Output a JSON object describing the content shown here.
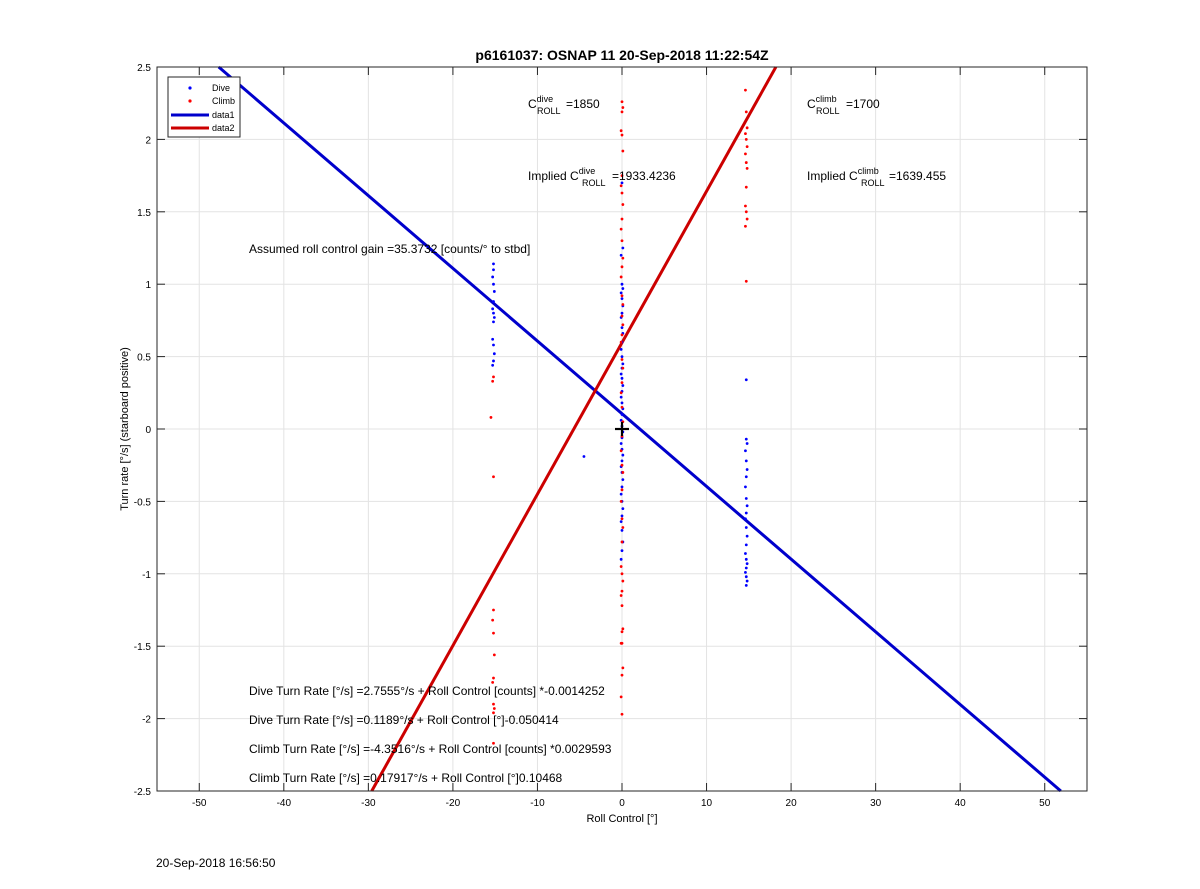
{
  "chart_data": {
    "type": "scatter",
    "title": "p6161037: OSNAP 11 20-Sep-2018 11:22:54Z",
    "xlabel": "Roll Control [°]",
    "ylabel": "Turn rate [°/s] (starboard positive)",
    "xlim": [
      -55,
      55
    ],
    "ylim": [
      -2.5,
      2.5
    ],
    "xticks": [
      -50,
      -40,
      -30,
      -20,
      -10,
      0,
      10,
      20,
      30,
      40,
      50
    ],
    "yticks": [
      -2.5,
      -2,
      -1.5,
      -1,
      -0.5,
      0,
      0.5,
      1,
      1.5,
      2,
      2.5
    ],
    "grid": true,
    "legend_position": "top-left",
    "legend": [
      {
        "label": "Dive",
        "kind": "marker",
        "color": "#0000ff"
      },
      {
        "label": "Climb",
        "kind": "marker",
        "color": "#ff0000"
      },
      {
        "label": "data1",
        "kind": "line",
        "color": "#0000cc"
      },
      {
        "label": "data2",
        "kind": "line",
        "color": "#cc0000"
      }
    ],
    "lines": [
      {
        "name": "data1",
        "color": "#0000cc",
        "points": [
          [
            -47.7,
            2.5
          ],
          [
            51.9,
            -2.5
          ]
        ]
      },
      {
        "name": "data2",
        "color": "#cc0000",
        "points": [
          [
            -29.6,
            -2.5
          ],
          [
            18.2,
            2.5
          ]
        ]
      }
    ],
    "series": [
      {
        "name": "Dive",
        "color": "#0000ff",
        "points": [
          [
            -15.2,
            1.14
          ],
          [
            -15.2,
            1.1
          ],
          [
            -15.3,
            1.05
          ],
          [
            -15.2,
            1.0
          ],
          [
            -15.1,
            0.95
          ],
          [
            -15.2,
            0.88
          ],
          [
            -15.3,
            0.83
          ],
          [
            -15.2,
            0.8
          ],
          [
            -15.1,
            0.77
          ],
          [
            -15.2,
            0.74
          ],
          [
            -15.3,
            0.62
          ],
          [
            -15.2,
            0.58
          ],
          [
            -15.1,
            0.52
          ],
          [
            -15.2,
            0.47
          ],
          [
            -15.3,
            0.44
          ],
          [
            -4.5,
            -0.19
          ],
          [
            0.0,
            1.7
          ],
          [
            0.1,
            1.25
          ],
          [
            -0.1,
            1.2
          ],
          [
            0.0,
            1.0
          ],
          [
            0.1,
            0.97
          ],
          [
            -0.1,
            0.94
          ],
          [
            0.0,
            0.9
          ],
          [
            0.1,
            0.85
          ],
          [
            0.0,
            0.8
          ],
          [
            -0.1,
            0.77
          ],
          [
            0.0,
            0.7
          ],
          [
            0.1,
            0.66
          ],
          [
            0.0,
            0.6
          ],
          [
            -0.1,
            0.55
          ],
          [
            0.0,
            0.5
          ],
          [
            0.1,
            0.45
          ],
          [
            0.0,
            0.42
          ],
          [
            -0.1,
            0.38
          ],
          [
            0.0,
            0.35
          ],
          [
            0.1,
            0.3
          ],
          [
            0.0,
            0.26
          ],
          [
            -0.1,
            0.22
          ],
          [
            0.0,
            0.18
          ],
          [
            0.1,
            0.14
          ],
          [
            0.0,
            0.1
          ],
          [
            -0.1,
            0.06
          ],
          [
            0.0,
            0.02
          ],
          [
            0.1,
            -0.02
          ],
          [
            0.0,
            -0.06
          ],
          [
            -0.1,
            -0.1
          ],
          [
            0.0,
            -0.14
          ],
          [
            0.1,
            -0.18
          ],
          [
            0.0,
            -0.22
          ],
          [
            -0.1,
            -0.26
          ],
          [
            0.0,
            -0.3
          ],
          [
            0.1,
            -0.35
          ],
          [
            0.0,
            -0.4
          ],
          [
            -0.1,
            -0.45
          ],
          [
            0.0,
            -0.5
          ],
          [
            0.1,
            -0.55
          ],
          [
            0.0,
            -0.6
          ],
          [
            -0.1,
            -0.64
          ],
          [
            0.0,
            -0.7
          ],
          [
            0.1,
            -0.78
          ],
          [
            0.0,
            -0.84
          ],
          [
            -0.1,
            -0.9
          ],
          [
            14.7,
            0.34
          ],
          [
            14.7,
            -0.07
          ],
          [
            14.8,
            -0.1
          ],
          [
            14.6,
            -0.15
          ],
          [
            14.7,
            -0.22
          ],
          [
            14.8,
            -0.28
          ],
          [
            14.7,
            -0.33
          ],
          [
            14.6,
            -0.4
          ],
          [
            14.7,
            -0.48
          ],
          [
            14.8,
            -0.53
          ],
          [
            14.7,
            -0.58
          ],
          [
            14.6,
            -0.62
          ],
          [
            14.7,
            -0.68
          ],
          [
            14.8,
            -0.74
          ],
          [
            14.7,
            -0.8
          ],
          [
            14.6,
            -0.86
          ],
          [
            14.7,
            -0.9
          ],
          [
            14.8,
            -0.93
          ],
          [
            14.7,
            -0.96
          ],
          [
            14.6,
            -0.99
          ],
          [
            14.7,
            -1.02
          ],
          [
            14.8,
            -1.05
          ],
          [
            14.7,
            -1.08
          ]
        ]
      },
      {
        "name": "Climb",
        "color": "#ff0000",
        "points": [
          [
            -15.2,
            0.36
          ],
          [
            -15.3,
            0.33
          ],
          [
            -15.5,
            0.08
          ],
          [
            -15.2,
            -0.33
          ],
          [
            -15.2,
            -1.25
          ],
          [
            -15.3,
            -1.32
          ],
          [
            -15.2,
            -1.41
          ],
          [
            -15.1,
            -1.56
          ],
          [
            -15.2,
            -1.72
          ],
          [
            -15.3,
            -1.75
          ],
          [
            -15.2,
            -1.9
          ],
          [
            -15.1,
            -1.93
          ],
          [
            -15.2,
            -1.96
          ],
          [
            -15.2,
            -2.17
          ],
          [
            0.0,
            2.26
          ],
          [
            0.1,
            2.22
          ],
          [
            0.0,
            2.19
          ],
          [
            -0.1,
            2.06
          ],
          [
            0.0,
            2.03
          ],
          [
            0.1,
            1.92
          ],
          [
            0.0,
            1.75
          ],
          [
            -0.1,
            1.68
          ],
          [
            0.0,
            1.63
          ],
          [
            0.1,
            1.55
          ],
          [
            0.0,
            1.45
          ],
          [
            -0.1,
            1.38
          ],
          [
            0.0,
            1.3
          ],
          [
            0.1,
            1.18
          ],
          [
            0.0,
            1.12
          ],
          [
            -0.1,
            1.05
          ],
          [
            0.0,
            0.92
          ],
          [
            0.1,
            0.86
          ],
          [
            0.0,
            0.78
          ],
          [
            0.1,
            0.72
          ],
          [
            0.0,
            0.65
          ],
          [
            -0.1,
            0.6
          ],
          [
            0.0,
            0.48
          ],
          [
            0.1,
            0.42
          ],
          [
            0.0,
            0.32
          ],
          [
            -0.1,
            0.25
          ],
          [
            0.0,
            0.15
          ],
          [
            0.1,
            0.05
          ],
          [
            0.0,
            -0.05
          ],
          [
            -0.1,
            -0.15
          ],
          [
            0.0,
            -0.25
          ],
          [
            0.1,
            -0.3
          ],
          [
            0.0,
            -0.42
          ],
          [
            -0.1,
            -0.5
          ],
          [
            0.0,
            -0.62
          ],
          [
            0.1,
            -0.68
          ],
          [
            0.0,
            -0.78
          ],
          [
            -0.1,
            -0.95
          ],
          [
            0.0,
            -1.0
          ],
          [
            0.1,
            -1.05
          ],
          [
            0.0,
            -1.12
          ],
          [
            -0.1,
            -1.15
          ],
          [
            0.0,
            -1.22
          ],
          [
            0.1,
            -1.38
          ],
          [
            0.0,
            -1.4
          ],
          [
            -0.1,
            -1.48
          ],
          [
            0.0,
            -1.48
          ],
          [
            0.1,
            -1.65
          ],
          [
            0.0,
            -1.7
          ],
          [
            -0.1,
            -1.85
          ],
          [
            0.0,
            -1.97
          ],
          [
            14.6,
            2.34
          ],
          [
            14.7,
            2.19
          ],
          [
            14.8,
            2.08
          ],
          [
            14.6,
            2.04
          ],
          [
            14.7,
            2.0
          ],
          [
            14.8,
            1.95
          ],
          [
            14.6,
            1.9
          ],
          [
            14.7,
            1.84
          ],
          [
            14.8,
            1.8
          ],
          [
            14.7,
            1.67
          ],
          [
            14.6,
            1.54
          ],
          [
            14.7,
            1.5
          ],
          [
            14.8,
            1.45
          ],
          [
            14.6,
            1.4
          ],
          [
            14.7,
            1.02
          ]
        ]
      }
    ],
    "crosshair": [
      0,
      0
    ],
    "annotations": {
      "c_dive": {
        "base": "C",
        "sup": "dive",
        "sub": "ROLL",
        "value": "=1850"
      },
      "c_climb": {
        "base": "C",
        "sup": "climb",
        "sub": "ROLL",
        "value": "=1700"
      },
      "implied_dive": {
        "prefix": "Implied ",
        "base": "C",
        "sup": "dive",
        "sub": "ROLL",
        "value": "=1933.4236"
      },
      "implied_climb": {
        "prefix": "Implied ",
        "base": "C",
        "sup": "climb",
        "sub": "ROLL",
        "value": "=1639.455"
      },
      "gain": "Assumed roll control gain =35.3732 [counts/° to stbd]",
      "eq1": "Dive Turn Rate [°/s] =2.7555°/s + Roll Control [counts] *-0.0014252",
      "eq2": "Dive Turn Rate [°/s] =0.1189°/s + Roll Control [°]-0.050414",
      "eq3": "Climb Turn Rate [°/s] =-4.3516°/s + Roll Control [counts] *0.0029593",
      "eq4": "Climb Turn Rate [°/s] =0.17917°/s + Roll Control [°]0.10468"
    }
  },
  "footer": {
    "timestamp": "20-Sep-2018 16:56:50"
  }
}
